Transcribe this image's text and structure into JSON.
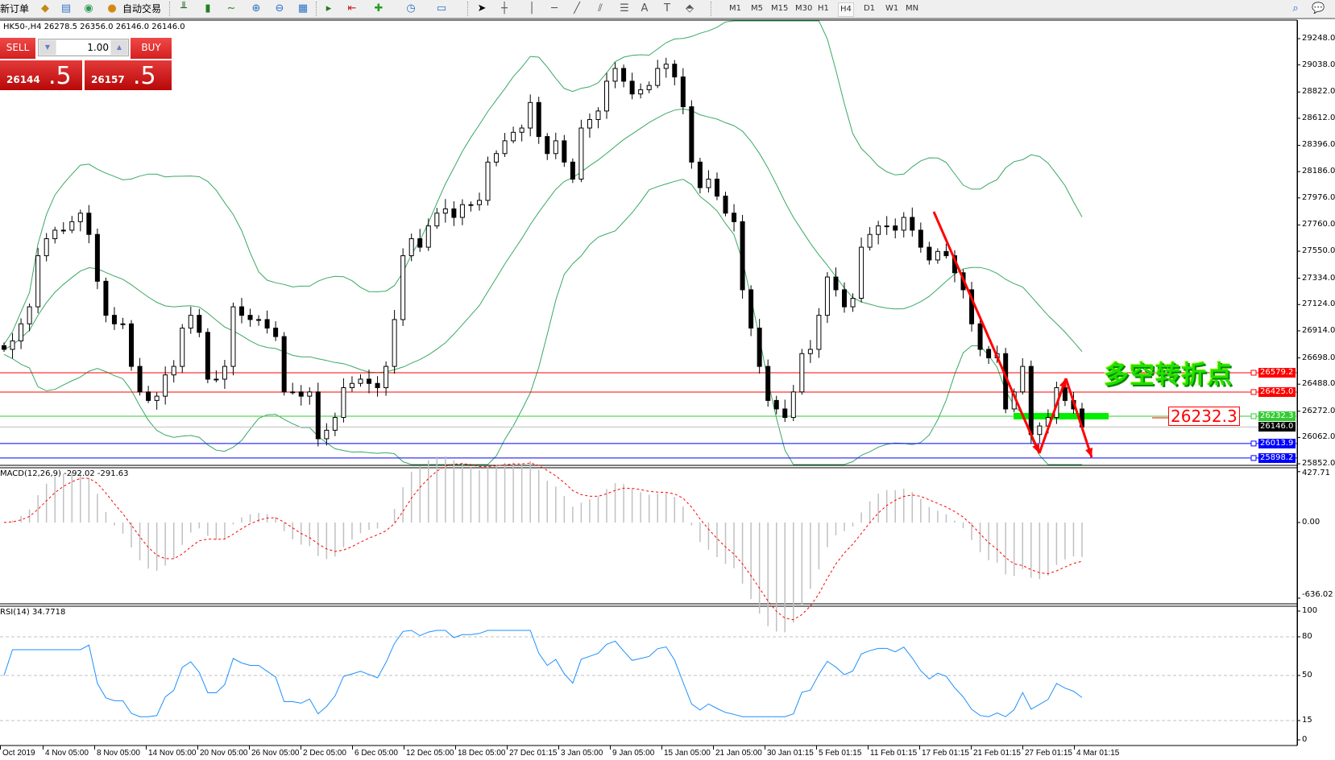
{
  "toolbar": {
    "new_order": "新订单",
    "auto_trading": "自动交易",
    "icons": [
      "orders-icon",
      "history-icon",
      "signals-icon",
      "autotrading-icon",
      "bar-chart-icon",
      "candlestick-icon",
      "line-chart-icon",
      "zoom-in-icon",
      "zoom-out-icon",
      "tile-windows-icon",
      "autoscroll-icon",
      "chart-shift-icon",
      "indicators-icon",
      "periods-icon",
      "templates-icon",
      "cursor-icon",
      "crosshair-icon",
      "vertical-line-icon",
      "horizontal-line-icon",
      "trendline-icon",
      "channel-icon",
      "fibonacci-icon",
      "text-icon",
      "text-label-icon",
      "shapes-icon",
      "search-icon",
      "chat-icon"
    ],
    "text_tool": "A",
    "label_tool": "T",
    "timeframes": [
      "M1",
      "M5",
      "M15",
      "M30",
      "H1",
      "H4",
      "D1",
      "W1",
      "MN"
    ],
    "active_timeframe": "H4"
  },
  "chart": {
    "symbol_info": "HK50-,H4  26278.5 26356.0 26146.0 26146.0"
  },
  "trade_panel": {
    "sell_label": "SELL",
    "buy_label": "BUY",
    "lot": "1.00",
    "sell_price_main": "26144",
    "sell_price_frac": ".5",
    "buy_price_main": "26157",
    "buy_price_frac": ".5"
  },
  "price_axis": {
    "ticks": [
      "29248.0",
      "29038.0",
      "28822.0",
      "28612.0",
      "28396.0",
      "28186.0",
      "27976.0",
      "27760.0",
      "27550.0",
      "27334.0",
      "27124.0",
      "26914.0",
      "26698.0",
      "26488.0",
      "26272.0",
      "26062.0",
      "25852.0"
    ],
    "levels": [
      {
        "price": "26579.2",
        "color": "#ff0000"
      },
      {
        "price": "26425.0",
        "color": "#ff0000"
      },
      {
        "price": "26232.3",
        "color": "#33cc33"
      },
      {
        "price": "26146.0",
        "color": "#000000",
        "line_color": "#c0c0c0"
      },
      {
        "price": "26013.9",
        "color": "#0000ff"
      },
      {
        "price": "25898.2",
        "color": "#0000ff"
      }
    ]
  },
  "annotation": {
    "text": "多空转折点",
    "price_label": "26232.3",
    "arrow_color": "#ff0000",
    "zone_color": "#00ee00"
  },
  "macd": {
    "label": "MACD(12,26,9) -292.02 -291.63",
    "ticks": [
      "427.71",
      "0.00",
      "-636.02"
    ]
  },
  "rsi": {
    "label": "RSI(14) 34.7718",
    "ticks": [
      "100",
      "80",
      "50",
      "15",
      "0"
    ]
  },
  "time_axis": {
    "labels": [
      "Oct 2019",
      "4 Nov 05:00",
      "8 Nov 05:00",
      "14 Nov 05:00",
      "20 Nov 05:00",
      "26 Nov 05:00",
      "2 Dec 05:00",
      "6 Dec 05:00",
      "12 Dec 05:00",
      "18 Dec 05:00",
      "27 Dec 01:15",
      "3 Jan 05:00",
      "9 Jan 05:00",
      "15 Jan 05:00",
      "21 Jan 05:00",
      "30 Jan 01:15",
      "5 Feb 01:15",
      "11 Feb 01:15",
      "17 Feb 01:15",
      "21 Feb 01:15",
      "27 Feb 01:15",
      "4 Mar 01:15"
    ]
  },
  "colors": {
    "bollinger": "#3aa864",
    "macd_histogram": "#c0c0c0",
    "macd_signal": "#ff0000",
    "rsi_line": "#1e90ff"
  },
  "chart_data": {
    "type": "candlestick",
    "symbol": "HK50-",
    "timeframe": "H4",
    "indicators": [
      "Bollinger Bands",
      "MACD(12,26,9)",
      "RSI(14)"
    ],
    "closes": [
      26766,
      26834,
      26970,
      27106,
      27514,
      27650,
      27718,
      27718,
      27786,
      27854,
      27684,
      27310,
      27038,
      26970,
      26970,
      26630,
      26426,
      26358,
      26392,
      26562,
      26630,
      26936,
      27038,
      26902,
      26528,
      26528,
      26630,
      27106,
      27038,
      27004,
      27004,
      26936,
      26868,
      26426,
      26426,
      26392,
      26426,
      26052,
      26120,
      26222,
      26460,
      26494,
      26528,
      26494,
      26460,
      26630,
      27004,
      27514,
      27650,
      27582,
      27752,
      27854,
      27888,
      27820,
      27922,
      27922,
      27956,
      28262,
      28330,
      28432,
      28500,
      28534,
      28738,
      28466,
      28330,
      28432,
      28262,
      28126,
      28534,
      28602,
      28670,
      28908,
      29010,
      28908,
      28806,
      28840,
      28874,
      29010,
      29044,
      28942,
      28704,
      28262,
      28058,
      28126,
      27990,
      27854,
      27786,
      27242,
      26936,
      26630,
      26358,
      26290,
      26222,
      26426,
      26732,
      26766,
      27038,
      27344,
      27242,
      27106,
      27174,
      27582,
      27684,
      27752,
      27752,
      27718,
      27820,
      27718,
      27582,
      27480,
      27548,
      27514,
      27378,
      27242,
      26970,
      26766,
      26698,
      26732,
      26290,
      26426,
      26630,
      26086,
      26154,
      26222,
      26460,
      26358,
      26290,
      26146
    ]
  }
}
